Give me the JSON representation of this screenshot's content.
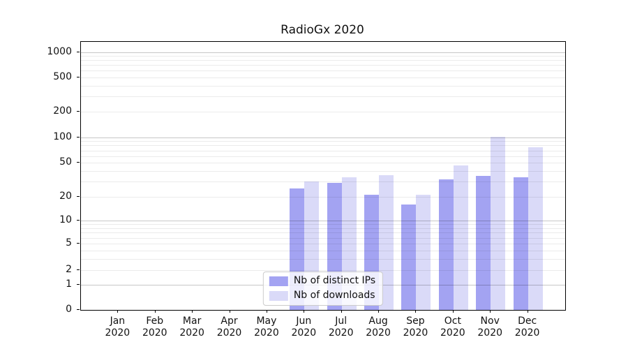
{
  "title": "RadioGx 2020",
  "chart_data": {
    "type": "bar",
    "title": "RadioGx 2020",
    "categories": [
      "Jan 2020",
      "Feb 2020",
      "Mar 2020",
      "Apr 2020",
      "May 2020",
      "Jun 2020",
      "Jul 2020",
      "Aug 2020",
      "Sep 2020",
      "Oct 2020",
      "Nov 2020",
      "Dec 2020"
    ],
    "series": [
      {
        "name": "Nb of distinct IPs",
        "color": "#a3a3f2",
        "values": [
          0,
          0,
          0,
          0,
          0,
          25,
          29,
          21,
          16,
          32,
          35,
          34
        ]
      },
      {
        "name": "Nb of downloads",
        "color": "#dadaf8",
        "values": [
          0,
          0,
          0,
          0,
          0,
          30,
          34,
          36,
          21,
          47,
          102,
          77
        ]
      }
    ],
    "yscale": "symlog",
    "yticks": [
      0,
      1,
      2,
      5,
      10,
      20,
      50,
      100,
      200,
      500,
      1000
    ],
    "ylim": [
      0,
      1300
    ],
    "grid": true,
    "legend_position": "lower center"
  }
}
